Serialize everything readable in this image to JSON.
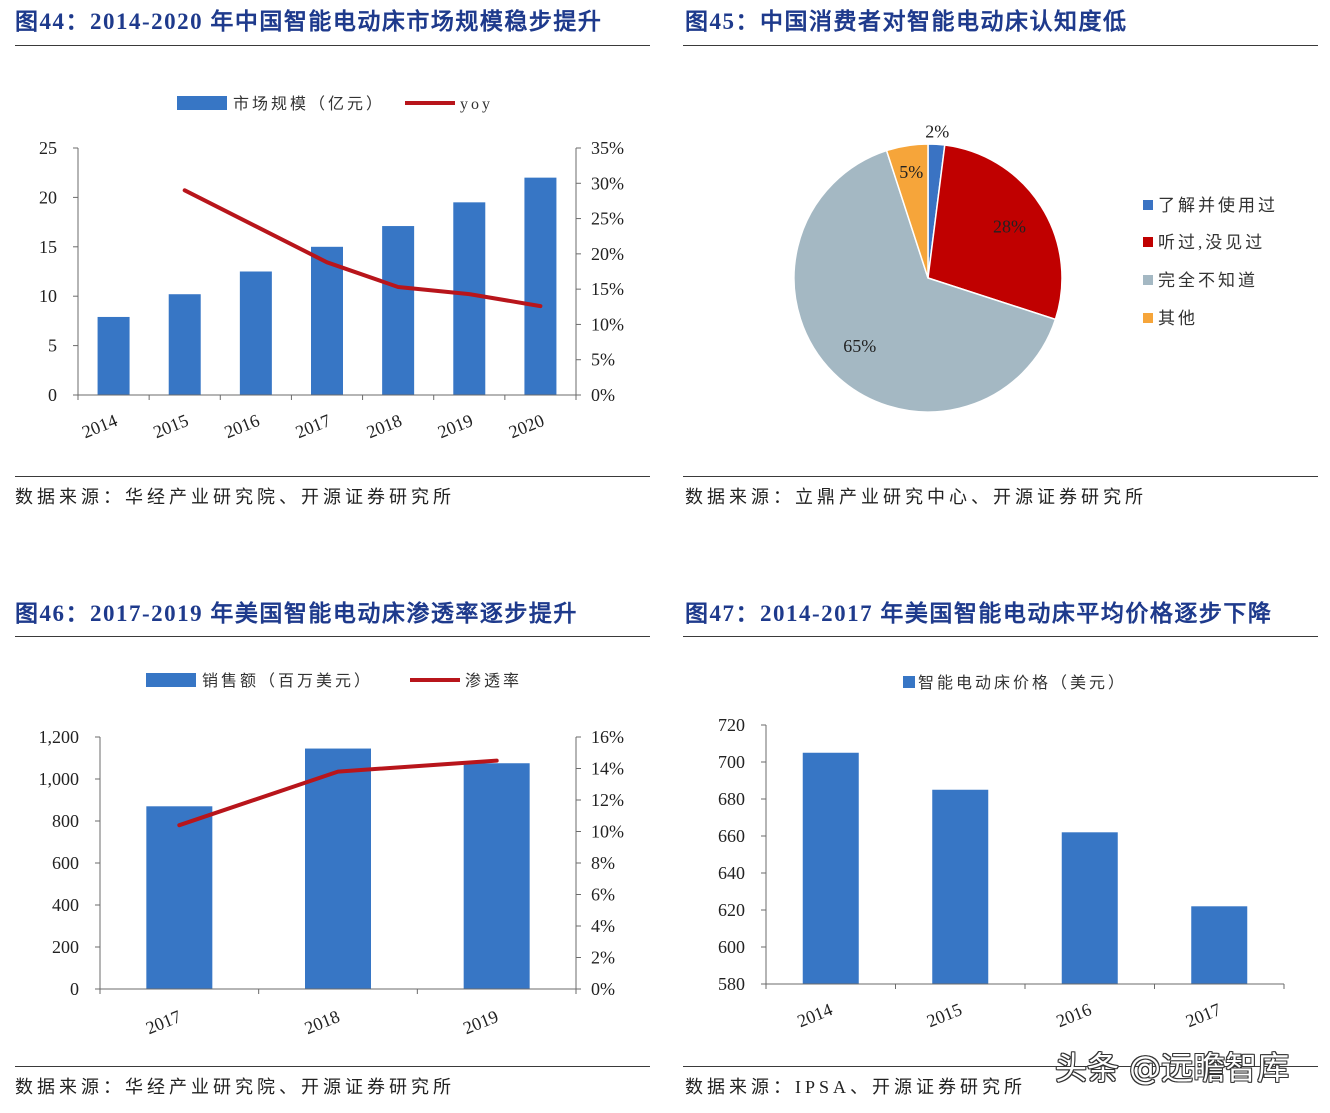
{
  "watermark": "头条 @远瞻智库",
  "chart_data": [
    {
      "type": "bar",
      "title": "图44：2014-2020 年中国智能电动床市场规模稳步提升",
      "source": "数据来源：华经产业研究院、开源证券研究所",
      "categories": [
        "2014",
        "2015",
        "2016",
        "2017",
        "2018",
        "2019",
        "2020"
      ],
      "series": [
        {
          "name": "市场规模（亿元）",
          "type": "bar",
          "axis": "left",
          "color": "#3776C5",
          "values": [
            7.9,
            10.2,
            12.5,
            15.0,
            17.1,
            19.5,
            22.0
          ]
        },
        {
          "name": "yoy",
          "type": "line",
          "axis": "right",
          "color": "#B8151B",
          "values": [
            null,
            29.0,
            23.9,
            18.8,
            15.3,
            14.3,
            12.6
          ]
        }
      ],
      "ylim": [
        0,
        25
      ],
      "y_tick_labels": [
        "0",
        "5",
        "10",
        "15",
        "20",
        "25"
      ],
      "y2lim": [
        0,
        35
      ],
      "y2_tick_labels": [
        "0%",
        "5%",
        "10%",
        "15%",
        "20%",
        "25%",
        "30%",
        "35%"
      ],
      "legend": "top",
      "grid": false
    },
    {
      "type": "pie",
      "title": "图45：中国消费者对智能电动床认知度低",
      "source": "数据来源：立鼎产业研究中心、开源证券研究所",
      "slices": [
        {
          "name": "了解并使用过",
          "value": 2,
          "label": "2%",
          "color": "#3A73C3"
        },
        {
          "name": "听过,没见过",
          "value": 28,
          "label": "28%",
          "color": "#C00000"
        },
        {
          "name": "完全不知道",
          "value": 65,
          "label": "65%",
          "color": "#A4B8C3"
        },
        {
          "name": "其他",
          "value": 5,
          "label": "5%",
          "color": "#F6A53A"
        }
      ],
      "legend": "right"
    },
    {
      "type": "bar",
      "title": "图46：2017-2019 年美国智能电动床渗透率逐步提升",
      "source": "数据来源：华经产业研究院、开源证券研究所",
      "categories": [
        "2017",
        "2018",
        "2019"
      ],
      "series": [
        {
          "name": "销售额（百万美元）",
          "type": "bar",
          "axis": "left",
          "color": "#3776C5",
          "values": [
            870,
            1145,
            1075
          ]
        },
        {
          "name": "渗透率",
          "type": "line",
          "axis": "right",
          "color": "#B8151B",
          "values": [
            10.4,
            13.8,
            14.5
          ]
        }
      ],
      "ylim": [
        0,
        1200
      ],
      "y_tick_labels": [
        "0",
        "200",
        "400",
        "600",
        "800",
        "1,000",
        "1,200"
      ],
      "y2lim": [
        0,
        16
      ],
      "y2_tick_labels": [
        "0%",
        "2%",
        "4%",
        "6%",
        "8%",
        "10%",
        "12%",
        "14%",
        "16%"
      ],
      "legend": "top",
      "grid": false
    },
    {
      "type": "bar",
      "title": "图47：2014-2017 年美国智能电动床平均价格逐步下降",
      "source": "数据来源：IPSA、开源证券研究所",
      "categories": [
        "2014",
        "2015",
        "2016",
        "2017"
      ],
      "series": [
        {
          "name": "智能电动床价格（美元）",
          "type": "bar",
          "axis": "left",
          "color": "#3776C5",
          "values": [
            705,
            685,
            662,
            622
          ]
        }
      ],
      "ylim": [
        580,
        720
      ],
      "y_tick_labels": [
        "580",
        "600",
        "620",
        "640",
        "660",
        "680",
        "700",
        "720"
      ],
      "legend": "top",
      "grid": false
    }
  ]
}
